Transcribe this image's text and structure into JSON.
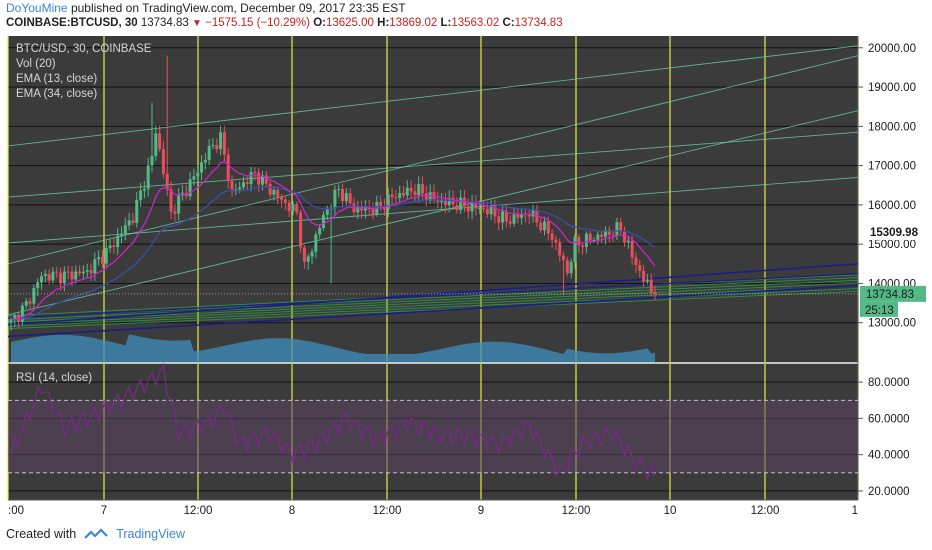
{
  "header": {
    "author": "DoYouMine",
    "published_text": "published on TradingView.com, December 09, 2017 23:35 EST"
  },
  "ticker": {
    "symbol": "COINBASE:BTCUSD, 30",
    "last": "13734.83",
    "change": "−1575.15 (−10.29%)",
    "open_label": "O:",
    "open": "13625.00",
    "high_label": "H:",
    "high": "13869.02",
    "low_label": "L:",
    "low": "13563.02",
    "close_label": "C:",
    "close": "13734.83"
  },
  "legend": {
    "main": "BTC/USD, 30, COINBASE",
    "vol": "Vol (20)",
    "ema13": "EMA (13, close)",
    "ema34": "EMA (34, close)",
    "rsi": "RSI (14, close)"
  },
  "footer": {
    "created": "Created with",
    "brand": "TradingView"
  },
  "colors": {
    "panel_bg": "#3b3b3b",
    "grid": "#111111",
    "vline": "#e8e84a",
    "bull": "#53b987",
    "bear": "#eb4d5c",
    "ema13": "#c926c9",
    "ema34": "#3b4fa8",
    "volume": "#3f8fbf",
    "channel": "#6fd0a8",
    "trend_navy": "#1d1d8a",
    "trend_green": "#2fa04a",
    "rsi_line": "#7a2a8a",
    "rsi_fill": "#5a4363",
    "rsi_band": "#d6d6d6"
  },
  "chart_data": [
    {
      "type": "candlestick",
      "title": "BTC/USD, 30, COINBASE",
      "ylim": [
        12000,
        20300
      ],
      "y_ticks": [
        "20000.00",
        "19000.00",
        "18000.00",
        "17000.00",
        "16000.00",
        "15000.00",
        "14000.00",
        "13000.00"
      ],
      "y_tick_values": [
        20000,
        19000,
        18000,
        17000,
        16000,
        15000,
        14000,
        13000
      ],
      "x_ticks": [
        ":00",
        "7",
        "12:00",
        "8",
        "12:00",
        "9",
        "12:00",
        "10",
        "12:00",
        "1"
      ],
      "last_price_label": "13734.83",
      "last_price": 13734.83,
      "prev_close_label": "15309.98",
      "prev_close": 15309.98,
      "countdown_label": "25:13",
      "ohlc_keyframes": [
        {
          "i": 0,
          "c": 13000
        },
        {
          "i": 4,
          "c": 13450
        },
        {
          "i": 8,
          "c": 14200
        },
        {
          "i": 14,
          "c": 14200
        },
        {
          "i": 20,
          "c": 14300
        },
        {
          "i": 26,
          "c": 14900
        },
        {
          "i": 32,
          "c": 15700
        },
        {
          "i": 37,
          "c": 17200
        },
        {
          "i": 38,
          "c": 17900
        },
        {
          "i": 42,
          "c": 15800
        },
        {
          "i": 48,
          "c": 16700
        },
        {
          "i": 52,
          "c": 17400
        },
        {
          "i": 55,
          "c": 17700
        },
        {
          "i": 58,
          "c": 16300
        },
        {
          "i": 64,
          "c": 16800
        },
        {
          "i": 70,
          "c": 16200
        },
        {
          "i": 75,
          "c": 15800
        },
        {
          "i": 77,
          "c": 14400
        },
        {
          "i": 82,
          "c": 15700
        },
        {
          "i": 86,
          "c": 16400
        },
        {
          "i": 90,
          "c": 15900
        },
        {
          "i": 96,
          "c": 15900
        },
        {
          "i": 100,
          "c": 16200
        },
        {
          "i": 106,
          "c": 16400
        },
        {
          "i": 112,
          "c": 16100
        },
        {
          "i": 118,
          "c": 16000
        },
        {
          "i": 124,
          "c": 15900
        },
        {
          "i": 130,
          "c": 15600
        },
        {
          "i": 136,
          "c": 15800
        },
        {
          "i": 142,
          "c": 15200
        },
        {
          "i": 146,
          "c": 14300
        },
        {
          "i": 148,
          "c": 15000
        },
        {
          "i": 154,
          "c": 15200
        },
        {
          "i": 160,
          "c": 15400
        },
        {
          "i": 163,
          "c": 14700
        },
        {
          "i": 166,
          "c": 14100
        },
        {
          "i": 169,
          "c": 13734.83
        }
      ],
      "spikes": [
        {
          "i": 41,
          "h": 19800
        },
        {
          "i": 37,
          "h": 18600
        },
        {
          "i": 145,
          "l": 13700
        },
        {
          "i": 84,
          "l": 14000
        }
      ],
      "volume_profile": "decreasing from left, peaks near index 35-45 and 150-165"
    },
    {
      "type": "line",
      "title": "RSI (14, close)",
      "ylim": [
        15,
        90
      ],
      "y_ticks": [
        "80.0000",
        "60.0000",
        "40.0000",
        "20.0000"
      ],
      "y_tick_values": [
        80,
        60,
        40,
        20
      ],
      "bands": [
        70,
        30
      ],
      "keyframes": [
        {
          "i": 0,
          "v": 40
        },
        {
          "i": 8,
          "v": 78
        },
        {
          "i": 14,
          "v": 55
        },
        {
          "i": 22,
          "v": 62
        },
        {
          "i": 30,
          "v": 72
        },
        {
          "i": 36,
          "v": 80
        },
        {
          "i": 40,
          "v": 86
        },
        {
          "i": 44,
          "v": 52
        },
        {
          "i": 52,
          "v": 58
        },
        {
          "i": 56,
          "v": 66
        },
        {
          "i": 60,
          "v": 46
        },
        {
          "i": 68,
          "v": 52
        },
        {
          "i": 74,
          "v": 40
        },
        {
          "i": 80,
          "v": 46
        },
        {
          "i": 88,
          "v": 60
        },
        {
          "i": 96,
          "v": 48
        },
        {
          "i": 104,
          "v": 58
        },
        {
          "i": 112,
          "v": 52
        },
        {
          "i": 120,
          "v": 50
        },
        {
          "i": 128,
          "v": 46
        },
        {
          "i": 136,
          "v": 56
        },
        {
          "i": 144,
          "v": 30
        },
        {
          "i": 150,
          "v": 46
        },
        {
          "i": 158,
          "v": 52
        },
        {
          "i": 164,
          "v": 36
        },
        {
          "i": 169,
          "v": 28
        }
      ]
    }
  ]
}
